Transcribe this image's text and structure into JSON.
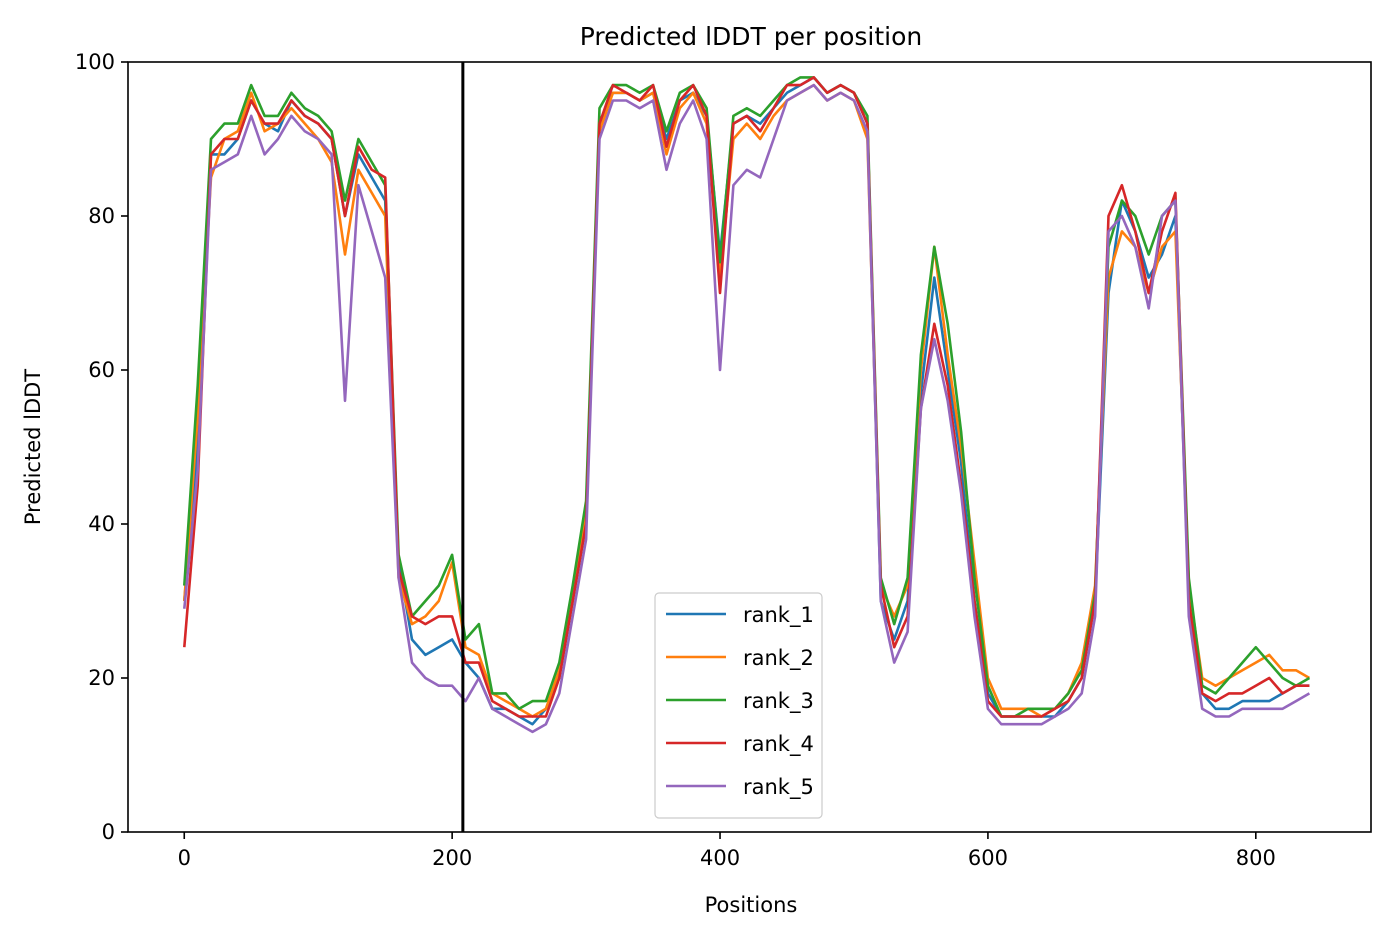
{
  "chart_data": {
    "type": "line",
    "title": "Predicted lDDT per position",
    "xlabel": "Positions",
    "ylabel": "Predicted lDDT",
    "xlim": [
      -42,
      886
    ],
    "ylim": [
      0,
      100
    ],
    "xticks": [
      0,
      200,
      400,
      600,
      800
    ],
    "yticks": [
      0,
      20,
      40,
      60,
      80,
      100
    ],
    "grid": false,
    "legend_position": "bottom-center",
    "vline": 208,
    "x_start": 0,
    "x_step": 10,
    "series": [
      {
        "name": "rank_1",
        "color": "#1f77b4",
        "values": [
          30,
          50,
          88,
          88,
          90,
          95,
          92,
          91,
          95,
          93,
          92,
          90,
          80,
          88,
          85,
          82,
          35,
          25,
          23,
          24,
          25,
          22,
          20,
          16,
          16,
          15,
          14,
          16,
          20,
          30,
          40,
          92,
          96,
          96,
          95,
          96,
          90,
          95,
          96,
          93,
          75,
          92,
          93,
          92,
          94,
          96,
          97,
          98,
          96,
          97,
          96,
          92,
          30,
          25,
          30,
          57,
          72,
          60,
          48,
          30,
          18,
          15,
          15,
          15,
          15,
          15,
          17,
          20,
          30,
          70,
          82,
          78,
          72,
          75,
          80,
          30,
          18,
          16,
          16,
          17,
          17,
          17,
          18,
          19,
          19
        ]
      },
      {
        "name": "rank_2",
        "color": "#ff7f0e",
        "values": [
          30,
          54,
          85,
          90,
          91,
          96,
          91,
          92,
          94,
          92,
          90,
          87,
          75,
          86,
          83,
          80,
          33,
          27,
          28,
          30,
          35,
          24,
          23,
          18,
          17,
          16,
          15,
          16,
          21,
          30,
          42,
          91,
          96,
          96,
          95,
          96,
          88,
          94,
          96,
          92,
          72,
          90,
          92,
          90,
          93,
          95,
          96,
          97,
          95,
          96,
          95,
          90,
          32,
          28,
          32,
          60,
          76,
          62,
          50,
          35,
          20,
          16,
          16,
          16,
          15,
          16,
          18,
          22,
          32,
          72,
          78,
          76,
          70,
          76,
          78,
          32,
          20,
          19,
          20,
          21,
          22,
          23,
          21,
          21,
          20
        ]
      },
      {
        "name": "rank_3",
        "color": "#2ca02c",
        "values": [
          32,
          58,
          90,
          92,
          92,
          97,
          93,
          93,
          96,
          94,
          93,
          91,
          82,
          90,
          87,
          84,
          36,
          28,
          30,
          32,
          36,
          25,
          27,
          18,
          18,
          16,
          17,
          17,
          22,
          32,
          43,
          94,
          97,
          97,
          96,
          97,
          91,
          96,
          97,
          94,
          74,
          93,
          94,
          93,
          95,
          97,
          98,
          98,
          96,
          97,
          96,
          93,
          33,
          27,
          33,
          62,
          76,
          66,
          52,
          33,
          19,
          15,
          15,
          16,
          16,
          16,
          18,
          21,
          31,
          76,
          82,
          80,
          75,
          80,
          82,
          33,
          19,
          18,
          20,
          22,
          24,
          22,
          20,
          19,
          20
        ]
      },
      {
        "name": "rank_4",
        "color": "#d62728",
        "values": [
          24,
          45,
          88,
          90,
          90,
          95,
          92,
          92,
          95,
          93,
          92,
          90,
          80,
          89,
          86,
          85,
          34,
          28,
          27,
          28,
          28,
          22,
          22,
          17,
          16,
          15,
          15,
          15,
          20,
          30,
          40,
          92,
          97,
          96,
          95,
          97,
          89,
          95,
          97,
          93,
          70,
          92,
          93,
          91,
          94,
          97,
          97,
          98,
          96,
          97,
          96,
          92,
          32,
          24,
          28,
          55,
          66,
          58,
          45,
          30,
          17,
          15,
          15,
          15,
          15,
          16,
          17,
          20,
          30,
          80,
          84,
          78,
          70,
          78,
          83,
          30,
          18,
          17,
          18,
          18,
          19,
          20,
          18,
          19,
          19
        ]
      },
      {
        "name": "rank_5",
        "color": "#9467bd",
        "values": [
          29,
          47,
          86,
          87,
          88,
          93,
          88,
          90,
          93,
          91,
          90,
          88,
          56,
          84,
          78,
          72,
          33,
          22,
          20,
          19,
          19,
          17,
          20,
          16,
          15,
          14,
          13,
          14,
          18,
          28,
          38,
          90,
          95,
          95,
          94,
          95,
          86,
          92,
          95,
          90,
          60,
          84,
          86,
          85,
          90,
          95,
          96,
          97,
          95,
          96,
          95,
          91,
          30,
          22,
          26,
          55,
          64,
          56,
          44,
          28,
          16,
          14,
          14,
          14,
          14,
          15,
          16,
          18,
          28,
          78,
          80,
          76,
          68,
          80,
          82,
          28,
          16,
          15,
          15,
          16,
          16,
          16,
          16,
          17,
          18
        ]
      }
    ]
  }
}
